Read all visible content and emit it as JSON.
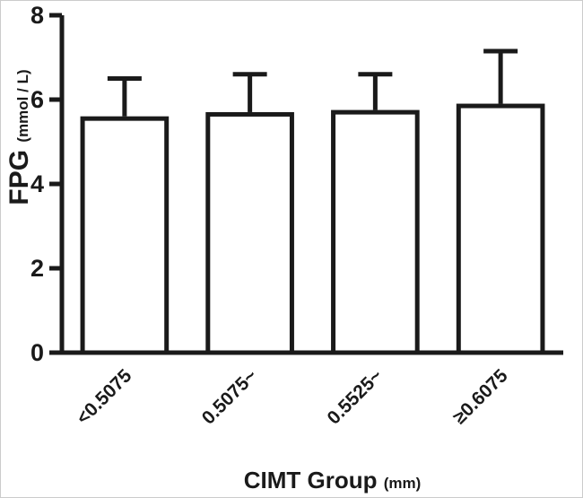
{
  "figure": {
    "background": "#ffffff",
    "border_color": "#cccccc"
  },
  "colors": {
    "ink": "#1a1a1a",
    "bar_fill": "#ffffff"
  },
  "chart_data": {
    "type": "bar",
    "title": "",
    "categories": [
      "<0.5075",
      "0.5075~",
      "0.5525~",
      "≥0.6075"
    ],
    "values": [
      5.55,
      5.65,
      5.7,
      5.85
    ],
    "errors_upper": [
      0.95,
      0.95,
      0.9,
      1.3
    ],
    "error_style": "upper whisker with cap (SD)",
    "ylabel": "FPG",
    "ylabel_unit": "(mmol / L)",
    "xlabel": "CIMT Group",
    "xlabel_unit": "(mm)",
    "ylim": [
      0,
      8
    ],
    "yticks": [
      0,
      2,
      4,
      6,
      8
    ],
    "grid": false,
    "legend": "none",
    "bar_fill": "#ffffff",
    "bar_edge": "#1a1a1a",
    "x_tick_label_rotation_deg": -45
  }
}
